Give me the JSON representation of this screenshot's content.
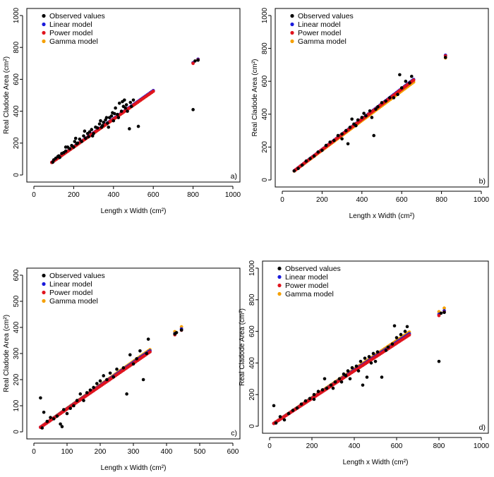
{
  "colors": {
    "observed": "#000000",
    "linear": "#1a1adb",
    "power": "#e0141e",
    "gamma": "#f5a000"
  },
  "legend_labels": [
    "Observed values",
    "Linear model",
    "Power model",
    "Gamma model"
  ],
  "chart_data": [
    {
      "type": "scatter",
      "panel_label": "a)",
      "xlabel": "Length x Width (cm²)",
      "ylabel": "Real Cladode Area (cm²)",
      "xlim": [
        0,
        1000
      ],
      "ylim": [
        0,
        1000
      ],
      "xticks": [
        0,
        200,
        400,
        600,
        800,
        1000
      ],
      "yticks": [
        0,
        200,
        400,
        600,
        800,
        1000
      ],
      "legend": "top-left",
      "model_x": [
        90,
        600
      ],
      "model_outlier_x": [
        800,
        825
      ],
      "slope": {
        "linear": 0.875,
        "power": 0.875,
        "gamma": 0.895
      },
      "observed": [
        [
          95,
          80
        ],
        [
          100,
          95
        ],
        [
          110,
          105
        ],
        [
          120,
          115
        ],
        [
          125,
          120
        ],
        [
          130,
          110
        ],
        [
          140,
          135
        ],
        [
          150,
          140
        ],
        [
          160,
          150
        ],
        [
          170,
          175
        ],
        [
          180,
          165
        ],
        [
          190,
          185
        ],
        [
          200,
          175
        ],
        [
          205,
          210
        ],
        [
          210,
          230
        ],
        [
          220,
          200
        ],
        [
          230,
          225
        ],
        [
          240,
          210
        ],
        [
          250,
          245
        ],
        [
          260,
          230
        ],
        [
          270,
          260
        ],
        [
          275,
          240
        ],
        [
          280,
          270
        ],
        [
          290,
          285
        ],
        [
          300,
          260
        ],
        [
          310,
          300
        ],
        [
          320,
          295
        ],
        [
          330,
          320
        ],
        [
          340,
          300
        ],
        [
          350,
          330
        ],
        [
          360,
          345
        ],
        [
          370,
          325
        ],
        [
          380,
          360
        ],
        [
          390,
          370
        ],
        [
          400,
          340
        ],
        [
          410,
          420
        ],
        [
          420,
          380
        ],
        [
          430,
          450
        ],
        [
          440,
          400
        ],
        [
          450,
          430
        ],
        [
          460,
          420
        ],
        [
          470,
          400
        ],
        [
          480,
          290
        ],
        [
          490,
          430
        ],
        [
          500,
          470
        ],
        [
          160,
          175
        ],
        [
          215,
          195
        ],
        [
          255,
          275
        ],
        [
          295,
          245
        ],
        [
          335,
          340
        ],
        [
          345,
          310
        ],
        [
          365,
          360
        ],
        [
          375,
          300
        ],
        [
          395,
          390
        ],
        [
          405,
          385
        ],
        [
          425,
          360
        ],
        [
          445,
          460
        ],
        [
          455,
          470
        ],
        [
          465,
          440
        ],
        [
          485,
          455
        ],
        [
          525,
          305
        ],
        [
          800,
          410
        ],
        [
          810,
          715
        ],
        [
          825,
          720
        ]
      ]
    },
    {
      "type": "scatter",
      "panel_label": "b)",
      "xlabel": "Length x Width (cm²)",
      "ylabel": "Real Cladode Area (cm²)",
      "xlim": [
        0,
        1000
      ],
      "ylim": [
        0,
        1000
      ],
      "xticks": [
        0,
        200,
        400,
        600,
        800,
        1000
      ],
      "yticks": [
        0,
        200,
        400,
        600,
        800,
        1000
      ],
      "legend": "top-left",
      "model_x": [
        60,
        660
      ],
      "model_outlier_x": [
        820
      ],
      "slope": {
        "linear": 0.92,
        "power": 0.92,
        "gamma": 0.92
      },
      "observed": [
        [
          60,
          55
        ],
        [
          80,
          70
        ],
        [
          100,
          90
        ],
        [
          120,
          115
        ],
        [
          140,
          130
        ],
        [
          160,
          145
        ],
        [
          180,
          170
        ],
        [
          200,
          180
        ],
        [
          220,
          210
        ],
        [
          240,
          230
        ],
        [
          260,
          240
        ],
        [
          280,
          270
        ],
        [
          300,
          280
        ],
        [
          320,
          300
        ],
        [
          340,
          320
        ],
        [
          350,
          370
        ],
        [
          360,
          340
        ],
        [
          380,
          365
        ],
        [
          400,
          380
        ],
        [
          420,
          390
        ],
        [
          440,
          420
        ],
        [
          460,
          270
        ],
        [
          470,
          430
        ],
        [
          480,
          445
        ],
        [
          500,
          470
        ],
        [
          520,
          480
        ],
        [
          540,
          500
        ],
        [
          560,
          500
        ],
        [
          580,
          520
        ],
        [
          590,
          640
        ],
        [
          600,
          560
        ],
        [
          620,
          600
        ],
        [
          640,
          590
        ],
        [
          650,
          630
        ],
        [
          300,
          250
        ],
        [
          330,
          220
        ],
        [
          370,
          330
        ],
        [
          410,
          405
        ],
        [
          450,
          380
        ],
        [
          820,
          745
        ]
      ]
    },
    {
      "type": "scatter",
      "panel_label": "c)",
      "xlabel": "Length x Width (cm²)",
      "ylabel": "Real Cladode Area (cm²)",
      "xlim": [
        0,
        600
      ],
      "ylim": [
        0,
        600
      ],
      "xticks": [
        0,
        100,
        200,
        300,
        400,
        500,
        600
      ],
      "yticks": [
        0,
        100,
        200,
        300,
        400,
        500,
        600
      ],
      "legend": "top-left",
      "model_x": [
        20,
        350
      ],
      "model_outlier_x": [
        425,
        445
      ],
      "slope": {
        "linear": 0.88,
        "power": 0.875,
        "gamma": 0.92
      },
      "observed": [
        [
          20,
          130
        ],
        [
          25,
          15
        ],
        [
          30,
          75
        ],
        [
          40,
          40
        ],
        [
          50,
          55
        ],
        [
          60,
          50
        ],
        [
          70,
          60
        ],
        [
          80,
          30
        ],
        [
          85,
          20
        ],
        [
          90,
          85
        ],
        [
          100,
          70
        ],
        [
          110,
          90
        ],
        [
          120,
          100
        ],
        [
          130,
          120
        ],
        [
          140,
          145
        ],
        [
          150,
          120
        ],
        [
          160,
          150
        ],
        [
          170,
          160
        ],
        [
          180,
          170
        ],
        [
          190,
          185
        ],
        [
          200,
          195
        ],
        [
          210,
          215
        ],
        [
          220,
          200
        ],
        [
          230,
          225
        ],
        [
          240,
          210
        ],
        [
          250,
          240
        ],
        [
          270,
          245
        ],
        [
          280,
          145
        ],
        [
          290,
          295
        ],
        [
          300,
          260
        ],
        [
          310,
          280
        ],
        [
          320,
          310
        ],
        [
          330,
          200
        ],
        [
          340,
          300
        ],
        [
          345,
          355
        ],
        [
          425,
          375
        ],
        [
          430,
          380
        ],
        [
          445,
          390
        ]
      ]
    },
    {
      "type": "scatter",
      "panel_label": "d)",
      "xlabel": "Length x Width (cm²)",
      "ylabel": "Real Cladode Area (cm²)",
      "xlim": [
        0,
        1000
      ],
      "ylim": [
        0,
        1000
      ],
      "xticks": [
        0,
        200,
        400,
        600,
        800,
        1000
      ],
      "yticks": [
        0,
        200,
        400,
        600,
        800,
        1000
      ],
      "legend": "top-left",
      "model_x": [
        20,
        660
      ],
      "model_outlier_x": [
        800,
        825
      ],
      "slope": {
        "linear": 0.88,
        "power": 0.875,
        "gamma": 0.92
      },
      "observed": [
        [
          20,
          130
        ],
        [
          30,
          20
        ],
        [
          50,
          60
        ],
        [
          70,
          40
        ],
        [
          90,
          80
        ],
        [
          110,
          100
        ],
        [
          130,
          115
        ],
        [
          150,
          140
        ],
        [
          170,
          160
        ],
        [
          190,
          175
        ],
        [
          210,
          200
        ],
        [
          230,
          220
        ],
        [
          250,
          230
        ],
        [
          270,
          240
        ],
        [
          290,
          260
        ],
        [
          310,
          280
        ],
        [
          330,
          300
        ],
        [
          350,
          330
        ],
        [
          370,
          350
        ],
        [
          390,
          370
        ],
        [
          410,
          380
        ],
        [
          430,
          410
        ],
        [
          450,
          430
        ],
        [
          470,
          440
        ],
        [
          490,
          460
        ],
        [
          510,
          470
        ],
        [
          530,
          310
        ],
        [
          550,
          480
        ],
        [
          560,
          500
        ],
        [
          580,
          520
        ],
        [
          590,
          635
        ],
        [
          600,
          560
        ],
        [
          620,
          580
        ],
        [
          640,
          600
        ],
        [
          650,
          630
        ],
        [
          210,
          170
        ],
        [
          260,
          300
        ],
        [
          300,
          240
        ],
        [
          340,
          280
        ],
        [
          360,
          320
        ],
        [
          380,
          300
        ],
        [
          420,
          350
        ],
        [
          440,
          260
        ],
        [
          460,
          310
        ],
        [
          480,
          400
        ],
        [
          500,
          410
        ],
        [
          800,
          410
        ],
        [
          810,
          715
        ],
        [
          825,
          720
        ]
      ]
    }
  ]
}
